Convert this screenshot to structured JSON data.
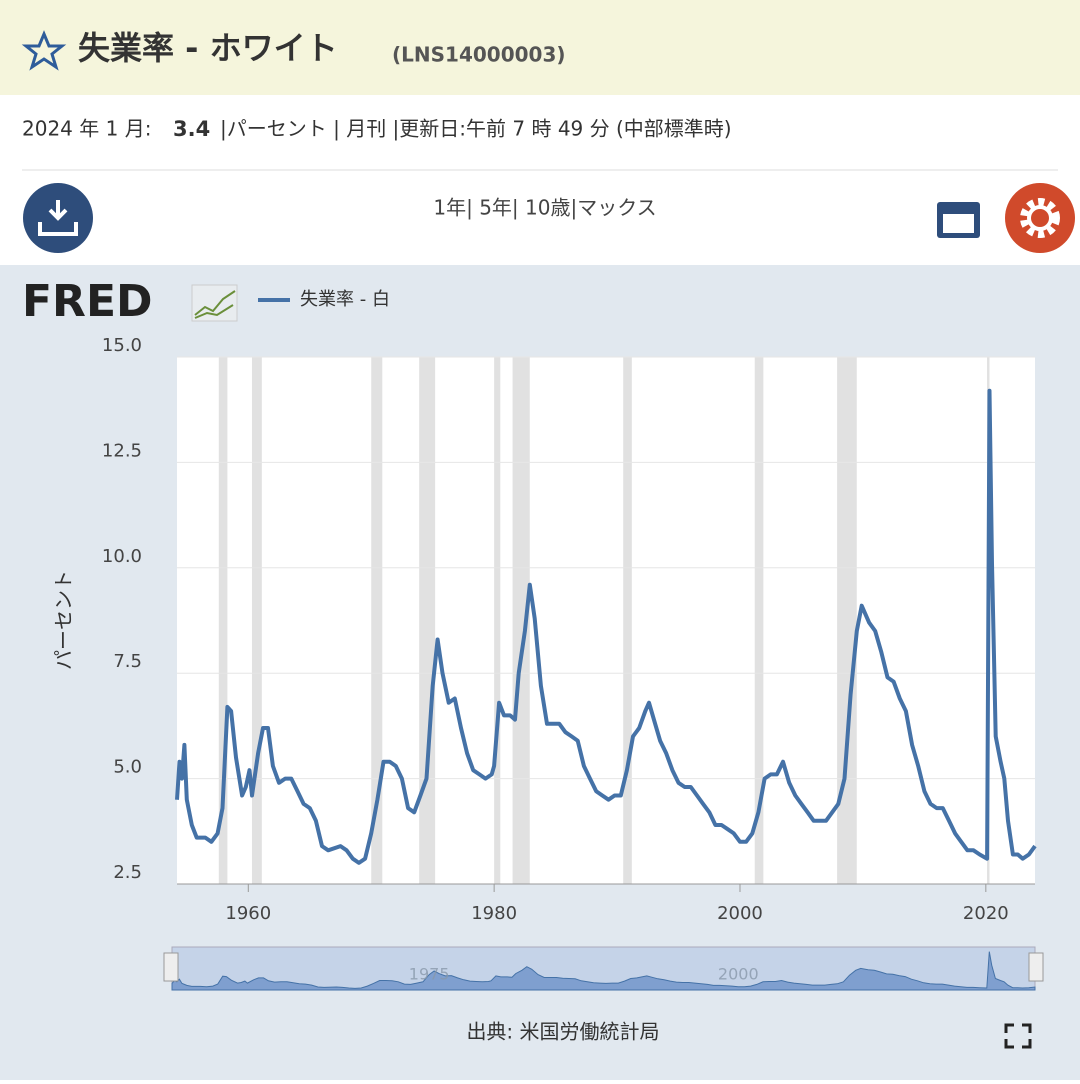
{
  "header": {
    "title": "失業率 - ホワイト",
    "series_id": "(LNS14000003)"
  },
  "info": {
    "date": "2024 年 1 月:",
    "value": "3.4",
    "rest": "|パーセント | 月刊 |更新日:午前 7 時 49 分 (中部標準時)"
  },
  "toolbar": {
    "ranges": "1年| 5年| 10歳|マックス"
  },
  "logo": "FRED",
  "source": "出典: 米国労働統計局",
  "chart_data": {
    "type": "line",
    "y_label": "パーセント",
    "xlim": [
      1954.2,
      2024.0
    ],
    "xticks": [
      1960,
      1980,
      2000,
      2020
    ],
    "ylim": [
      2.5,
      15
    ],
    "yticks": [
      {
        "value": 15,
        "label": "15.0"
      },
      12.5,
      {
        "value": 10,
        "label": "10.0"
      },
      7.5,
      {
        "value": 5,
        "label": "5.0"
      },
      2.5
    ],
    "grid": true,
    "navigator_labels": [
      {
        "value": 1975,
        "label": "1975"
      },
      {
        "value": 2000,
        "label": "2000"
      }
    ],
    "recessions": [
      [
        1957.6,
        1958.3
      ],
      [
        1960.3,
        1961.1
      ],
      [
        1970.0,
        1970.9
      ],
      [
        1973.9,
        1975.2
      ],
      [
        1980.0,
        1980.5
      ],
      [
        1981.5,
        1982.9
      ],
      [
        1990.5,
        1991.2
      ],
      [
        2001.2,
        2001.9
      ],
      [
        2007.9,
        2009.5
      ],
      [
        2020.1,
        2020.3
      ]
    ],
    "series": [
      {
        "name": "失業率 - 白",
        "color": "#4572a7",
        "x": [
          1954.2,
          1954.4,
          1954.6,
          1954.8,
          1955.0,
          1955.4,
          1955.8,
          1956.5,
          1957.0,
          1957.5,
          1957.9,
          1958.3,
          1958.6,
          1959.0,
          1959.5,
          1959.8,
          1960.1,
          1960.3,
          1960.8,
          1961.2,
          1961.6,
          1962.0,
          1962.5,
          1963.0,
          1963.5,
          1964.0,
          1964.5,
          1965.0,
          1965.5,
          1966.0,
          1966.5,
          1967.5,
          1968.0,
          1968.5,
          1969.0,
          1969.5,
          1970.0,
          1970.5,
          1971.0,
          1971.5,
          1972.0,
          1972.5,
          1973.0,
          1973.5,
          1974.0,
          1974.5,
          1975.0,
          1975.4,
          1975.8,
          1976.3,
          1976.8,
          1977.3,
          1977.8,
          1978.3,
          1978.8,
          1979.3,
          1979.8,
          1980.0,
          1980.4,
          1980.8,
          1981.3,
          1981.7,
          1982.0,
          1982.5,
          1982.9,
          1983.3,
          1983.8,
          1984.3,
          1984.8,
          1985.3,
          1985.8,
          1986.3,
          1986.8,
          1987.3,
          1987.8,
          1988.3,
          1988.8,
          1989.3,
          1989.8,
          1990.3,
          1990.8,
          1991.3,
          1991.8,
          1992.3,
          1992.6,
          1993.0,
          1993.5,
          1994.0,
          1994.5,
          1995.0,
          1995.5,
          1996.0,
          1996.5,
          1997.0,
          1997.5,
          1998.0,
          1998.5,
          1999.0,
          1999.5,
          2000.0,
          2000.5,
          2001.0,
          2001.5,
          2002.0,
          2002.5,
          2003.0,
          2003.5,
          2004.0,
          2004.5,
          2005.0,
          2005.5,
          2006.0,
          2006.5,
          2007.0,
          2007.5,
          2008.0,
          2008.5,
          2009.0,
          2009.5,
          2009.9,
          2010.5,
          2011.0,
          2011.5,
          2012.0,
          2012.5,
          2013.0,
          2013.5,
          2014.0,
          2014.5,
          2015.0,
          2015.5,
          2016.0,
          2016.5,
          2017.0,
          2017.5,
          2018.0,
          2018.5,
          2019.0,
          2019.5,
          2020.1,
          2020.3,
          2020.5,
          2020.8,
          2021.2,
          2021.5,
          2021.8,
          2022.2,
          2022.6,
          2023.0,
          2023.5,
          2024.0
        ],
        "values": [
          4.5,
          5.4,
          5.0,
          5.8,
          4.5,
          3.9,
          3.6,
          3.6,
          3.5,
          3.7,
          4.3,
          6.7,
          6.6,
          5.5,
          4.6,
          4.8,
          5.2,
          4.6,
          5.6,
          6.2,
          6.2,
          5.3,
          4.9,
          5.0,
          5.0,
          4.7,
          4.4,
          4.3,
          4.0,
          3.4,
          3.3,
          3.4,
          3.3,
          3.1,
          3.0,
          3.1,
          3.7,
          4.5,
          5.4,
          5.4,
          5.3,
          5.0,
          4.3,
          4.2,
          4.6,
          5.0,
          7.2,
          8.3,
          7.5,
          6.8,
          6.9,
          6.2,
          5.6,
          5.2,
          5.1,
          5.0,
          5.1,
          5.3,
          6.8,
          6.5,
          6.5,
          6.4,
          7.5,
          8.5,
          9.6,
          8.8,
          7.2,
          6.3,
          6.3,
          6.3,
          6.1,
          6.0,
          5.9,
          5.3,
          5.0,
          4.7,
          4.6,
          4.5,
          4.6,
          4.6,
          5.2,
          6.0,
          6.2,
          6.6,
          6.8,
          6.4,
          5.9,
          5.6,
          5.2,
          4.9,
          4.8,
          4.8,
          4.6,
          4.4,
          4.2,
          3.9,
          3.9,
          3.8,
          3.7,
          3.5,
          3.5,
          3.7,
          4.2,
          5.0,
          5.1,
          5.1,
          5.4,
          4.9,
          4.6,
          4.4,
          4.2,
          4.0,
          4.0,
          4.0,
          4.2,
          4.4,
          5.0,
          7.0,
          8.5,
          9.1,
          8.7,
          8.5,
          8.0,
          7.4,
          7.3,
          6.9,
          6.6,
          5.8,
          5.3,
          4.7,
          4.4,
          4.3,
          4.3,
          4.0,
          3.7,
          3.5,
          3.3,
          3.3,
          3.2,
          3.1,
          14.2,
          10.1,
          6.0,
          5.4,
          5.0,
          4.0,
          3.2,
          3.2,
          3.1,
          3.2,
          3.4
        ]
      }
    ]
  }
}
